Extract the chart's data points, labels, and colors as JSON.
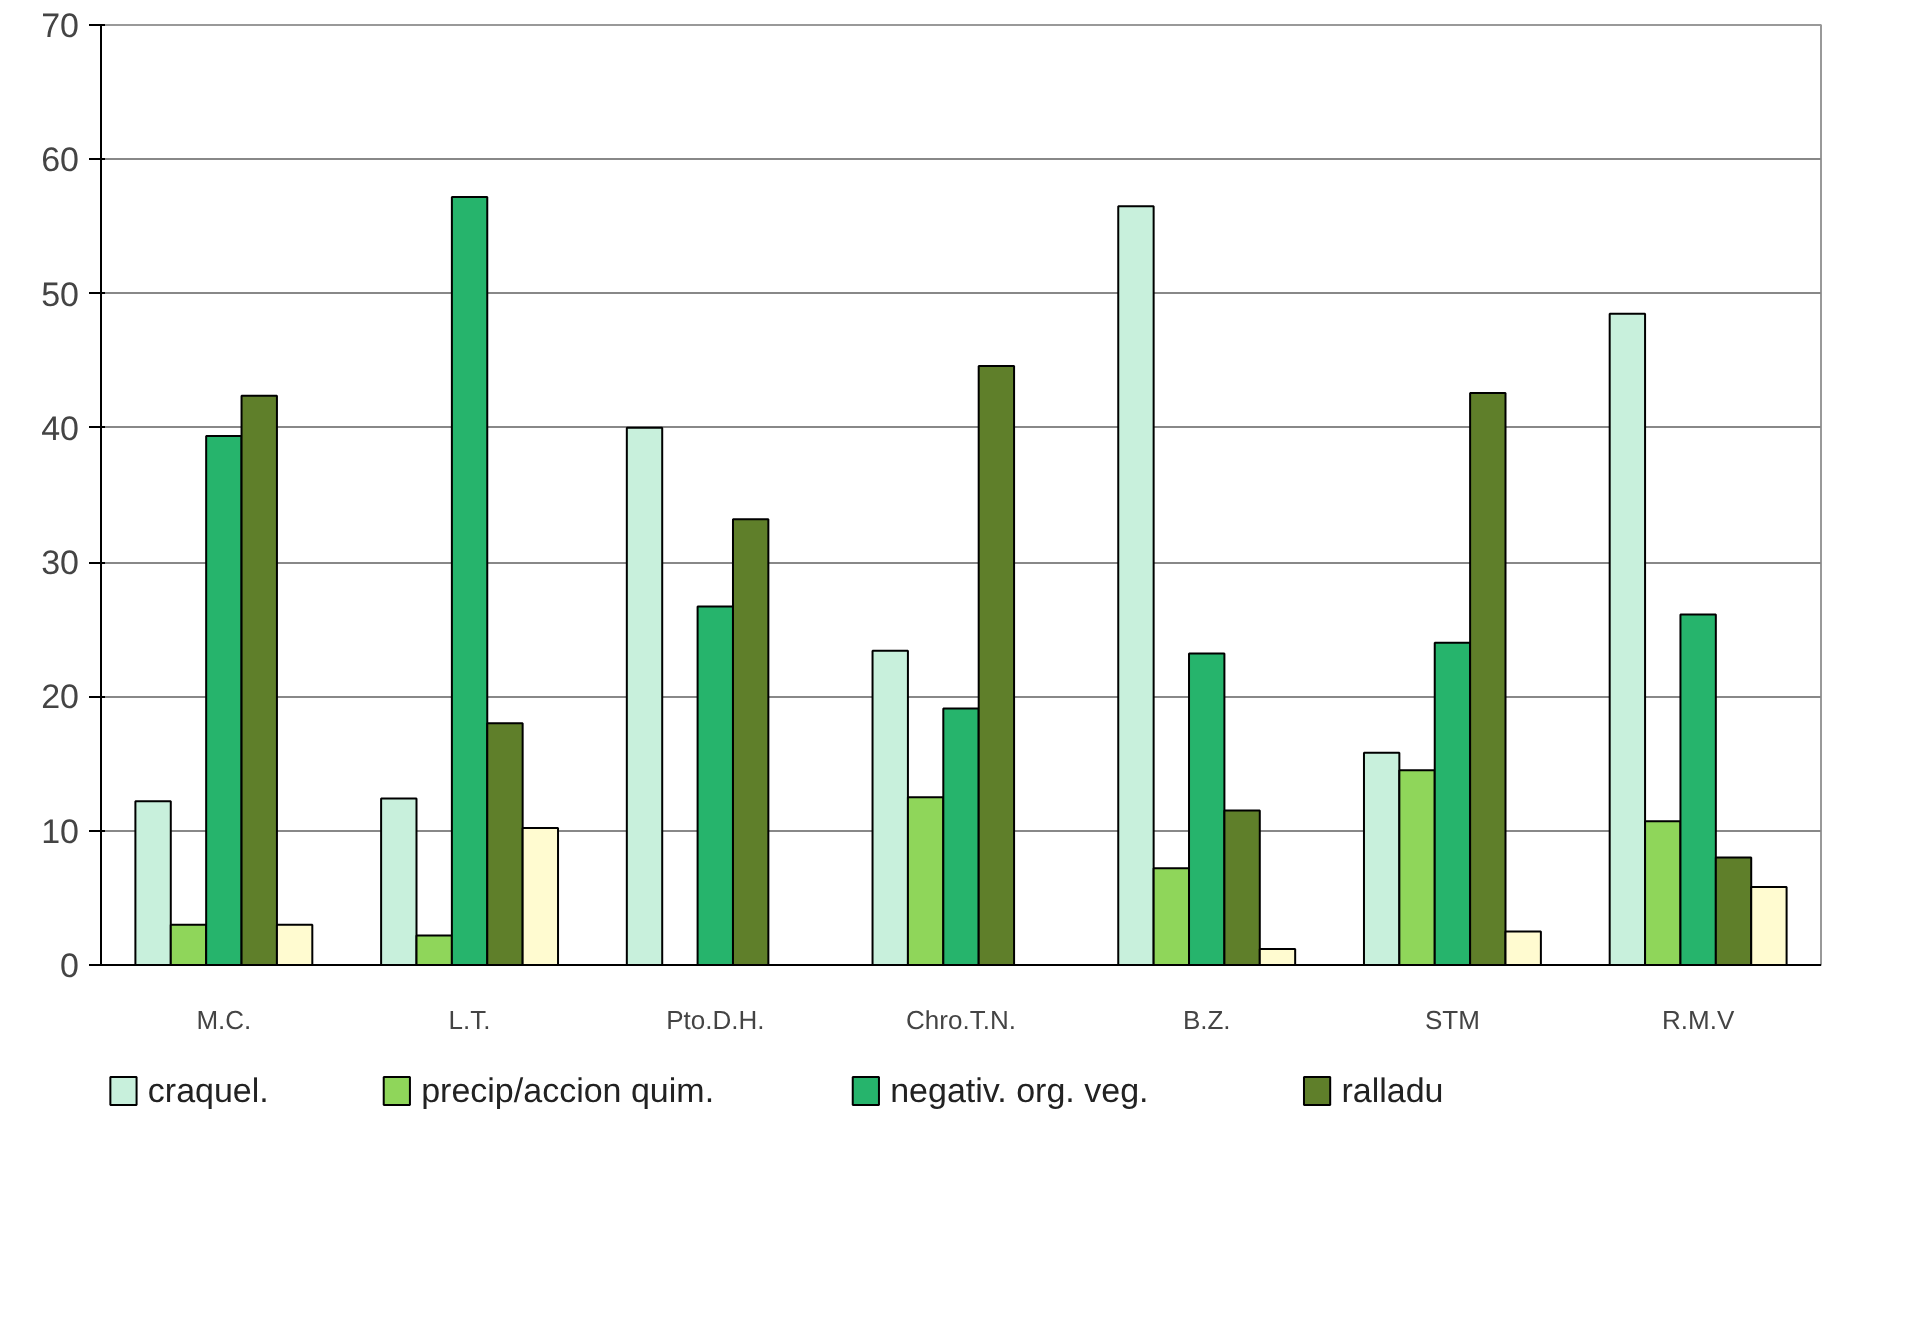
{
  "chart_data": {
    "type": "bar",
    "categories": [
      "M.C.",
      "L.T.",
      "Pto.D.H.",
      "Chro.T.N.",
      "B.Z.",
      "STM",
      "R.M.V"
    ],
    "series": [
      {
        "name": "craquel.",
        "color": "#c8f0dc",
        "values": [
          12.2,
          12.4,
          40,
          23.4,
          56.5,
          15.8,
          48.5
        ]
      },
      {
        "name": "precip/accion quim.",
        "color": "#8fd65a",
        "values": [
          3,
          2.2,
          null,
          12.5,
          7.2,
          14.5,
          10.7
        ]
      },
      {
        "name": "negativ. org. veg.",
        "color": "#26b46c",
        "values": [
          39.4,
          57.2,
          26.7,
          19.1,
          23.2,
          24,
          26.1
        ]
      },
      {
        "name": "ralladu",
        "color": "#5f7f2a",
        "values": [
          42.4,
          18,
          33.2,
          44.6,
          11.5,
          42.6,
          8
        ]
      },
      {
        "color": "#fffbd0",
        "values": [
          3,
          10.2,
          null,
          null,
          1.2,
          2.5,
          5.8
        ]
      }
    ],
    "ylim": [
      0,
      70
    ],
    "yticks": [
      0,
      10,
      20,
      30,
      40,
      50,
      60,
      70
    ],
    "grid": "y",
    "legend": "bottom"
  }
}
